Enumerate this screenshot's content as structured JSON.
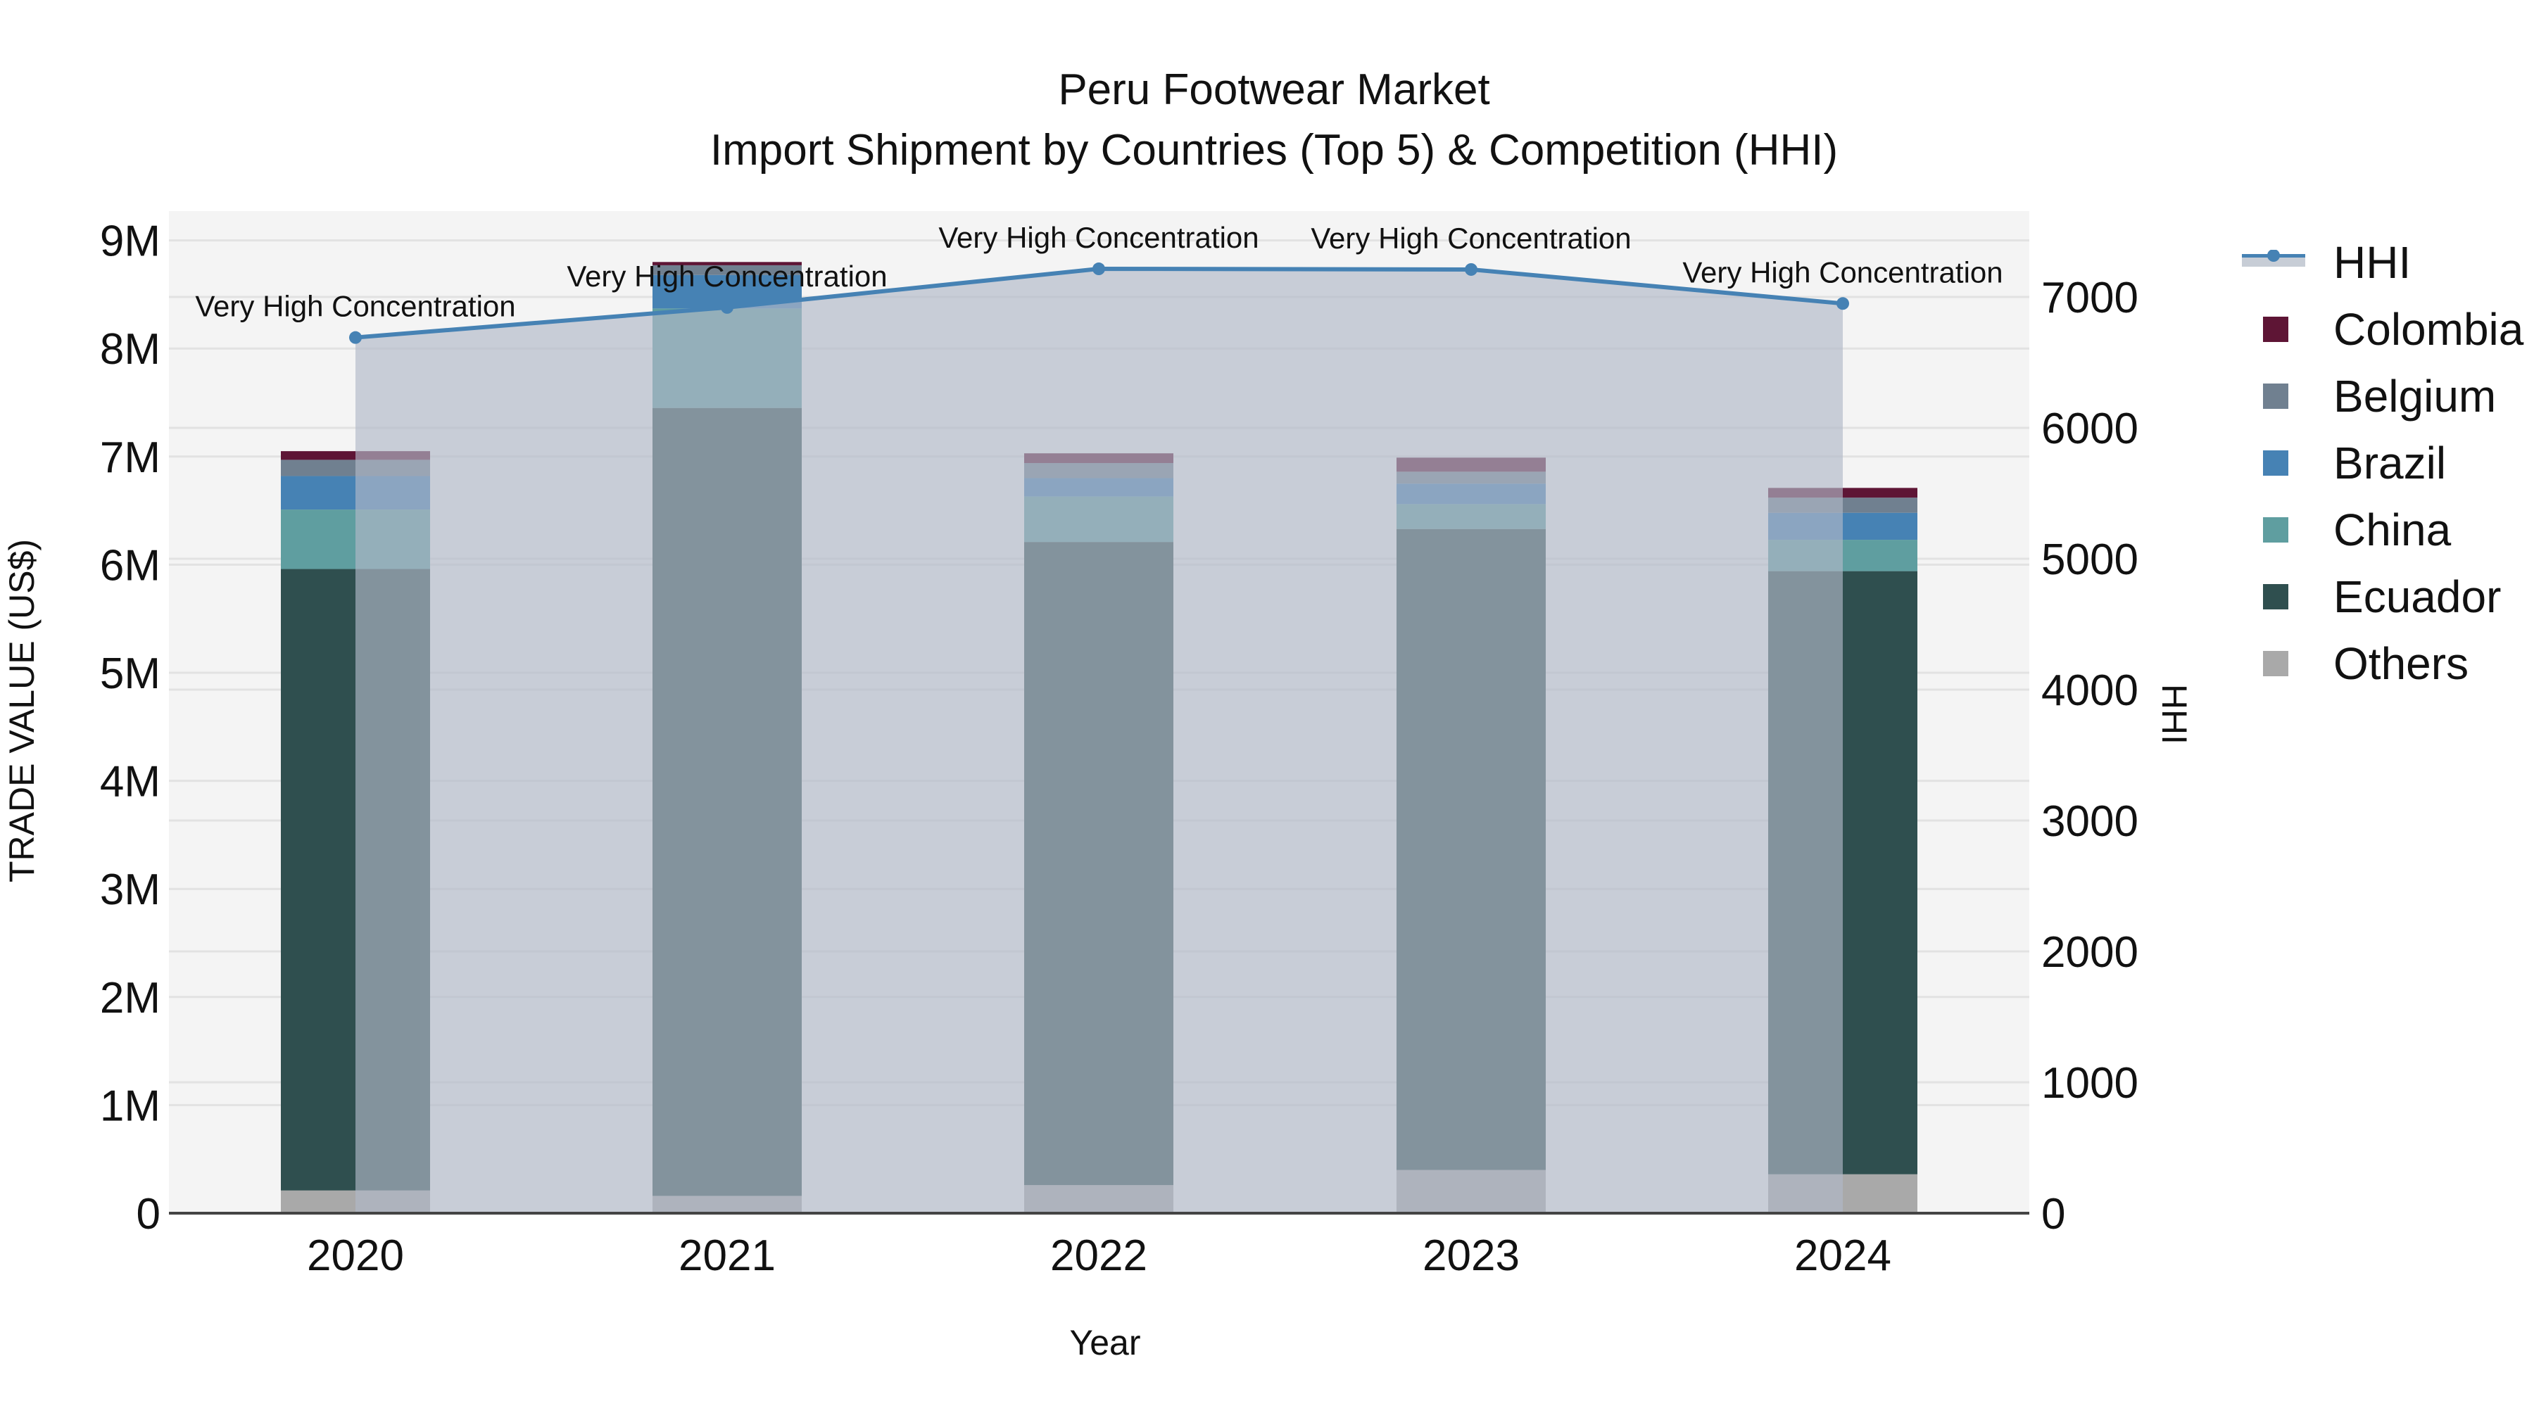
{
  "title": {
    "line1": "Peru Footwear Market",
    "line2": "Import Shipment by Countries (Top 5) & Competition (HHI)"
  },
  "axes": {
    "x_title": "Year",
    "y_left_title": "TRADE VALUE (US$)",
    "y_right_title": "HHI",
    "y_left_ticks": [
      "0",
      "1M",
      "2M",
      "3M",
      "4M",
      "5M",
      "6M",
      "7M",
      "8M",
      "9M"
    ],
    "y_right_ticks": [
      "0",
      "1000",
      "2000",
      "3000",
      "4000",
      "5000",
      "6000",
      "7000"
    ]
  },
  "legend": [
    {
      "label": "HHI",
      "type": "line",
      "color": "#4682B4"
    },
    {
      "label": "Colombia",
      "type": "bar",
      "color": "#5E1535"
    },
    {
      "label": "Belgium",
      "type": "bar",
      "color": "#708090"
    },
    {
      "label": "Brazil",
      "type": "bar",
      "color": "#4682B4"
    },
    {
      "label": "China",
      "type": "bar",
      "color": "#5F9EA0"
    },
    {
      "label": "Ecuador",
      "type": "bar",
      "color": "#2F4F4F"
    },
    {
      "label": "Others",
      "type": "bar",
      "color": "#A9A9A9"
    }
  ],
  "colors": {
    "plot_bg": "#F4F4F4",
    "grid": "#E2E2E2",
    "hhi_line": "#4682B4",
    "hhi_fill": "rgba(176,185,200,0.65)",
    "axis_line": "#444444"
  },
  "chart_data": {
    "type": "bar",
    "title": "Peru Footwear Market - Import Shipment by Countries (Top 5) & Competition (HHI)",
    "xlabel": "Year",
    "ylabel": "TRADE VALUE (US$)",
    "y2label": "HHI",
    "stacked": true,
    "categories": [
      "2020",
      "2021",
      "2022",
      "2023",
      "2024"
    ],
    "ylim": [
      0,
      9270000
    ],
    "y2lim": [
      0,
      7650
    ],
    "grid": true,
    "legend_position": "right",
    "series": [
      {
        "name": "Others",
        "color": "#A9A9A9",
        "values": [
          210000,
          160000,
          260000,
          400000,
          360000
        ]
      },
      {
        "name": "Ecuador",
        "color": "#2F4F4F",
        "values": [
          5750000,
          7290000,
          5950000,
          5930000,
          5580000
        ]
      },
      {
        "name": "China",
        "color": "#5F9EA0",
        "values": [
          550000,
          920000,
          420000,
          230000,
          290000
        ]
      },
      {
        "name": "Brazil",
        "color": "#4682B4",
        "values": [
          310000,
          310000,
          170000,
          190000,
          250000
        ]
      },
      {
        "name": "Belgium",
        "color": "#708090",
        "values": [
          150000,
          90000,
          140000,
          110000,
          140000
        ]
      },
      {
        "name": "Colombia",
        "color": "#5E1535",
        "values": [
          80000,
          30000,
          90000,
          130000,
          90000
        ]
      }
    ],
    "line_series": {
      "name": "HHI",
      "axis": "right",
      "type": "line+area",
      "color": "#4682B4",
      "values": [
        6690,
        6920,
        7215,
        7210,
        6950
      ],
      "annotations": [
        "Very High Concentration",
        "Very High Concentration",
        "Very High Concentration",
        "Very High Concentration",
        "Very High Concentration"
      ]
    }
  }
}
